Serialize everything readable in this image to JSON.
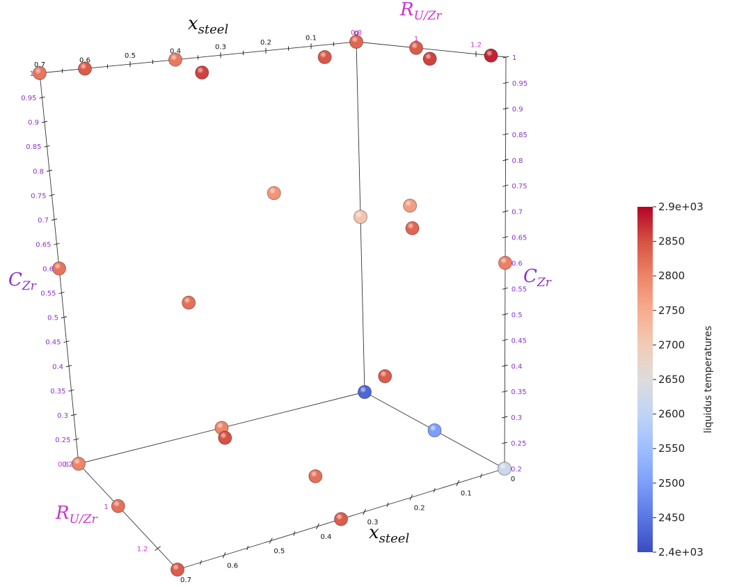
{
  "chart_data": {
    "type": "scatter3d",
    "axes": {
      "x": {
        "label_main": "x",
        "label_sub": "steel",
        "color": "#111111",
        "range": [
          0,
          0.7
        ],
        "ticks_top": [
          "0.7",
          "0.6",
          "0.5",
          "0.4",
          "0.3",
          "0.2",
          "0.1",
          "0"
        ],
        "ticks_bottom": [
          "0.7",
          "0.6",
          "0.5",
          "0.4",
          "0.3",
          "0.2",
          "0.1",
          "0"
        ]
      },
      "y": {
        "label_main": "R",
        "label_sub": "U/Zr",
        "color": "#cc33cc",
        "range": [
          0.8,
          1.3
        ],
        "ticks_top": [
          "0.8",
          "1",
          "1.2"
        ],
        "ticks_left": [
          "0.8",
          "1",
          "1.2"
        ]
      },
      "z": {
        "label_main": "C",
        "label_sub": "Zr",
        "color": "#8833cc",
        "range": [
          0.2,
          1
        ],
        "ticks": [
          "0.2",
          "0.25",
          "0.3",
          "0.35",
          "0.4",
          "0.45",
          "0.5",
          "0.55",
          "0.6",
          "0.65",
          "0.7",
          "0.75",
          "0.8",
          "0.85",
          "0.9",
          "0.95",
          "1"
        ]
      }
    },
    "colorbar": {
      "title": "liquidus temperatures",
      "min": 2400,
      "max": 2900,
      "ticks": [
        "2.4e+03",
        "2450",
        "2500",
        "2550",
        "2600",
        "2650",
        "2700",
        "2750",
        "2800",
        "2850",
        "2.9e+03"
      ],
      "colors": [
        "#3b4cc0",
        "#5977e3",
        "#7b9ff9",
        "#9ebeff",
        "#c0d4f5",
        "#dddcdc",
        "#f2cbb7",
        "#f7ac8e",
        "#ee8468",
        "#d65244",
        "#b40426"
      ]
    },
    "points": [
      {
        "x": 0.7,
        "r": 0.8,
        "c": 1.0,
        "t": 2815
      },
      {
        "x": 0.6,
        "r": 0.8,
        "c": 1.0,
        "t": 2840
      },
      {
        "x": 0.4,
        "r": 0.8,
        "c": 1.0,
        "t": 2810
      },
      {
        "x": 0.0,
        "r": 0.8,
        "c": 1.0,
        "t": 2830
      },
      {
        "x": 0.0,
        "r": 1.0,
        "c": 1.0,
        "t": 2840
      },
      {
        "x": 0.0,
        "r": 1.25,
        "c": 1.0,
        "t": 2880
      },
      {
        "x": 0.5,
        "r": 1.05,
        "c": 1.0,
        "t": 2860
      },
      {
        "x": 0.2,
        "r": 1.0,
        "c": 1.0,
        "t": 2845
      },
      {
        "x": 0.1,
        "r": 1.2,
        "c": 1.0,
        "t": 2860
      },
      {
        "x": 0.7,
        "r": 0.8,
        "c": 0.6,
        "t": 2815
      },
      {
        "x": 0.0,
        "r": 0.8,
        "c": 0.6,
        "t": 2710
      },
      {
        "x": 0.0,
        "r": 1.3,
        "c": 0.6,
        "t": 2805
      },
      {
        "x": 0.35,
        "r": 1.05,
        "c": 0.75,
        "t": 2780
      },
      {
        "x": 0.6,
        "r": 1.15,
        "c": 0.6,
        "t": 2820
      },
      {
        "x": 0.2,
        "r": 1.3,
        "c": 0.7,
        "t": 2830
      },
      {
        "x": 0.05,
        "r": 1.05,
        "c": 0.68,
        "t": 2770
      },
      {
        "x": 0.6,
        "r": 1.3,
        "c": 0.4,
        "t": 2850
      },
      {
        "x": 0.2,
        "r": 1.2,
        "c": 0.4,
        "t": 2840
      },
      {
        "x": 0.7,
        "r": 0.8,
        "c": 0.2,
        "t": 2800
      },
      {
        "x": 0.35,
        "r": 0.8,
        "c": 0.2,
        "t": 2800
      },
      {
        "x": 0.0,
        "r": 0.8,
        "c": 0.2,
        "t": 2430
      },
      {
        "x": 0.0,
        "r": 1.05,
        "c": 0.2,
        "t": 2500
      },
      {
        "x": 0.0,
        "r": 1.3,
        "c": 0.2,
        "t": 2620
      },
      {
        "x": 0.3,
        "r": 1.1,
        "c": 0.2,
        "t": 2820
      },
      {
        "x": 0.7,
        "r": 1.0,
        "c": 0.2,
        "t": 2820
      },
      {
        "x": 0.35,
        "r": 1.3,
        "c": 0.2,
        "t": 2840
      },
      {
        "x": 0.7,
        "r": 1.3,
        "c": 0.2,
        "t": 2840
      }
    ]
  }
}
